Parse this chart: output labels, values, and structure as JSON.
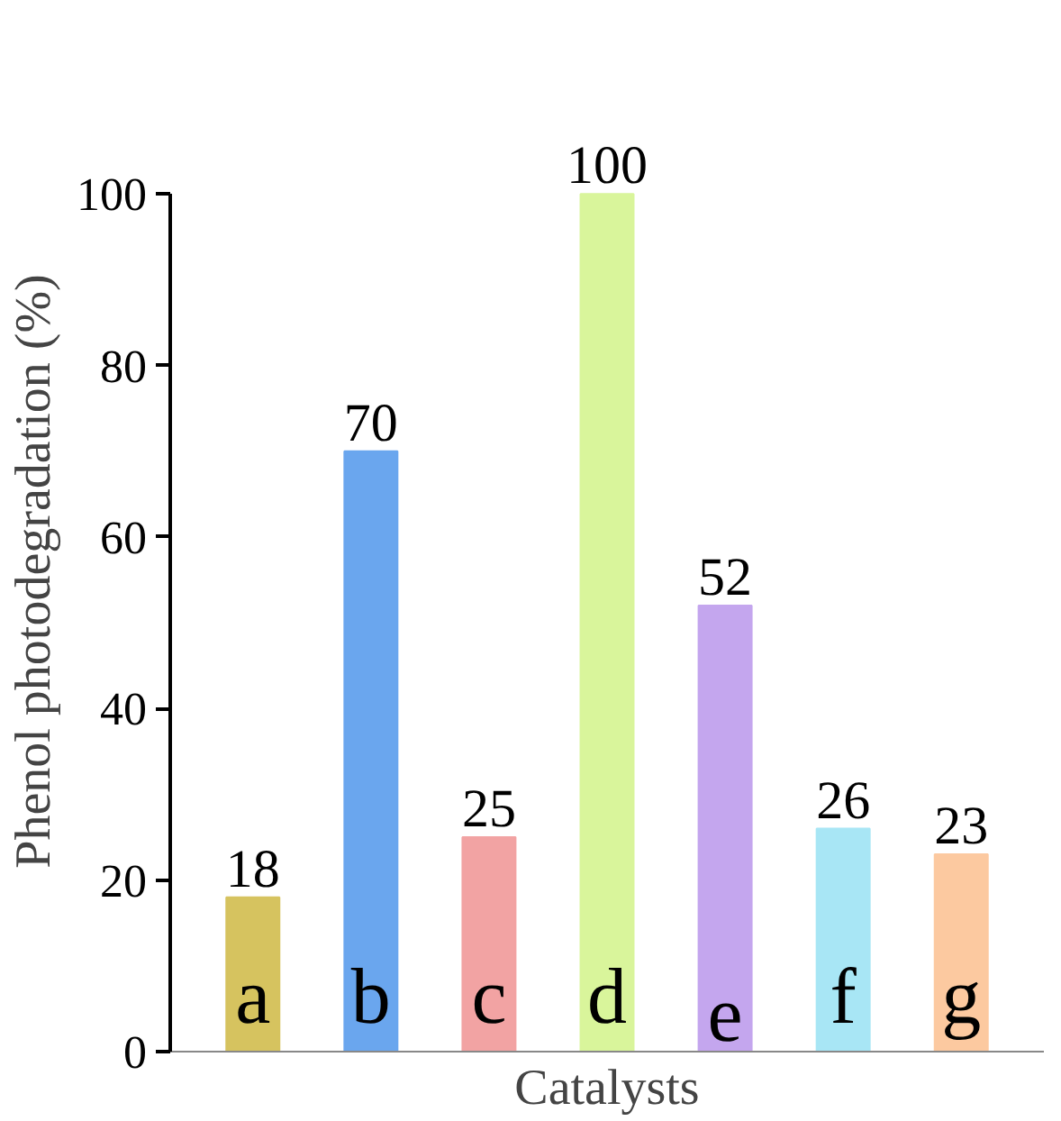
{
  "chart_data": {
    "type": "bar",
    "xlabel": "Catalysts",
    "ylabel": "Phenol photodegradation (%)",
    "categories": [
      "a",
      "b",
      "c",
      "d",
      "e",
      "f",
      "g"
    ],
    "values": [
      18,
      70,
      25,
      100,
      52,
      26,
      23
    ],
    "colors": [
      "#d6c35f",
      "#6aa6ee",
      "#f2a3a3",
      "#d9f59b",
      "#c4a6ee",
      "#a8e6f5",
      "#fcc9a0"
    ],
    "ylim": [
      0,
      100
    ],
    "yticks": [
      0,
      20,
      40,
      60,
      80,
      100
    ],
    "data_labels": true,
    "grid": false
  }
}
